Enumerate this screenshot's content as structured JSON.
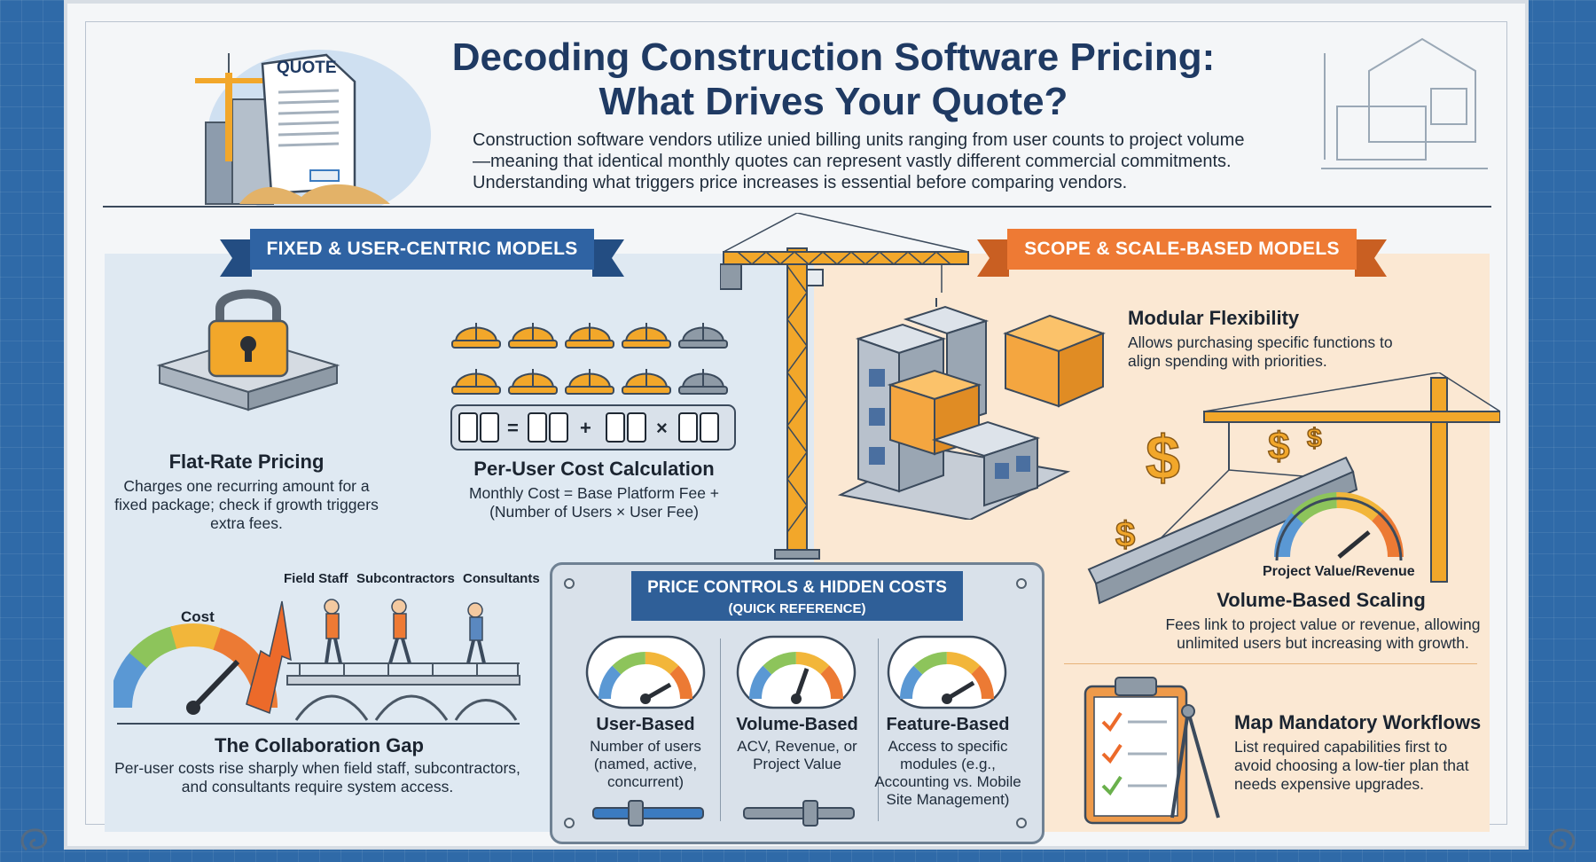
{
  "header": {
    "title_line1": "Decoding Construction Software Pricing:",
    "title_line2": "What Drives Your Quote?",
    "intro": "Construction software vendors utilize unied billing units ranging from user counts to project volume—meaning that identical monthly quotes can represent vastly different commercial commitments. Understanding what triggers price increases is essential before comparing vendors.",
    "quote_label": "QUOTE"
  },
  "left_section": {
    "banner": "FIXED & USER-CENTRIC MODELS",
    "flat_rate": {
      "title": "Flat-Rate Pricing",
      "desc": "Charges one recurring amount for a fixed package; check if growth triggers extra fees."
    },
    "per_user": {
      "title": "Per-User Cost Calculation",
      "desc": "Monthly Cost = Base Platform Fee + (Number of Users × User Fee)",
      "helmets_highlighted": 8,
      "helmets_total": 10
    },
    "collab_gap": {
      "title": "The Collaboration Gap",
      "desc": "Per-user costs rise sharply when field staff, subcontractors, and consultants require system access.",
      "cost_label": "Cost",
      "labels": [
        "Field Staff",
        "Subcontractors",
        "Consultants"
      ]
    }
  },
  "right_section": {
    "banner": "SCOPE & SCALE-BASED MODELS",
    "modular": {
      "title": "Modular Flexibility",
      "desc": "Allows purchasing specific functions to align spending with priorities."
    },
    "volume": {
      "gauge_label": "Project Value/Revenue",
      "title": "Volume-Based Scaling",
      "desc": "Fees link to project value or revenue, allowing unlimited users but increasing with growth."
    },
    "workflows": {
      "title": "Map Mandatory Workflows",
      "desc": "List required capabilities first to avoid choosing a low-tier plan that needs expensive upgrades."
    }
  },
  "reference": {
    "title": "PRICE CONTROLS & HIDDEN COSTS",
    "subtitle": "(QUICK REFERENCE)",
    "columns": [
      {
        "title": "User-Based",
        "desc": "Number of users (named, active, concurrent)",
        "slider_level": 0.35
      },
      {
        "title": "Volume-Based",
        "desc": "ACV, Revenue, or Project Value",
        "slider_level": 0.6
      },
      {
        "title": "Feature-Based",
        "desc": "Access to specific modules (e.g., Accounting vs. Mobile Site Management)"
      }
    ]
  },
  "colors": {
    "navy": "#1f3a63",
    "blue_banner": "#2f63a3",
    "orange_banner": "#ee7a34",
    "helmet_orange": "#f2a72a",
    "helmet_gray": "#8e9aa6",
    "block_orange": "#f4a640",
    "block_gray": "#c6cdd6"
  }
}
